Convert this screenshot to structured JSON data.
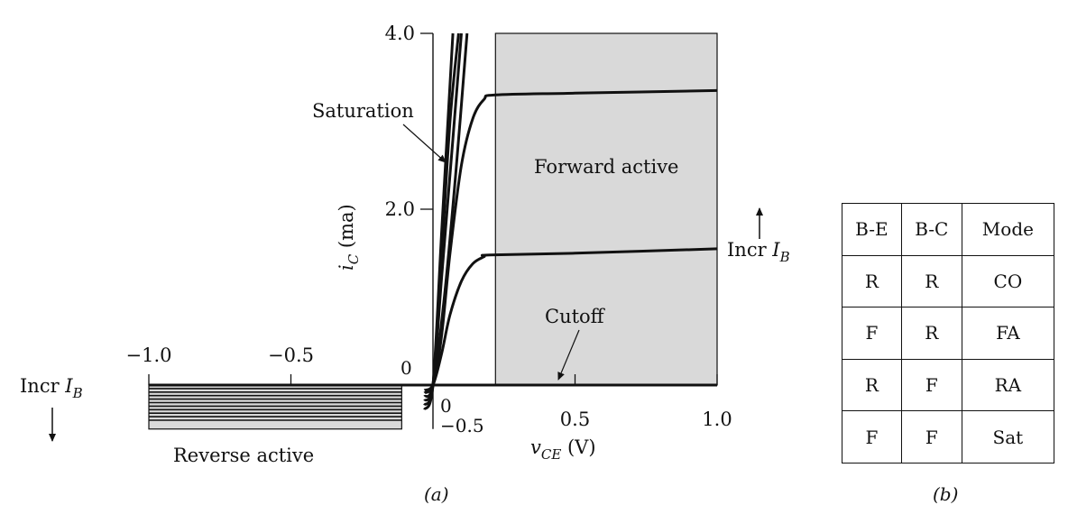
{
  "chart_data": {
    "type": "line",
    "title": "",
    "xlabel": "v",
    "xlabel_sub": "CE",
    "xlabel_unit": " (V)",
    "ylabel": "i",
    "ylabel_sub": "C",
    "ylabel_unit": " (ma)",
    "xlim": [
      -1.0,
      1.0
    ],
    "ylim": [
      -0.5,
      4.0
    ],
    "x_ticks": [
      {
        "v": -1.0,
        "label": "−1.0"
      },
      {
        "v": -0.5,
        "label": "−0.5"
      },
      {
        "v": 0.5,
        "label": "0.5"
      },
      {
        "v": 1.0,
        "label": "1.0"
      }
    ],
    "x_zero_label": "0",
    "y_ticks": [
      {
        "v": 4.0,
        "label": "4.0"
      },
      {
        "v": 2.0,
        "label": "2.0"
      }
    ],
    "y_zero_label": "0",
    "y_neg_label": "−0.5",
    "forward_active_region": {
      "x_from": 0.22,
      "x_to": 1.0,
      "y_from": 0.0,
      "y_to": 4.0,
      "label": "Forward active"
    },
    "reverse_active_region": {
      "x_from": -1.0,
      "x_to": -0.11,
      "y_from": -0.5,
      "y_to": 0.0,
      "label": "Reverse active"
    },
    "series": [
      {
        "points": [
          [
            -1.0,
            0.0
          ],
          [
            -0.08,
            0.0
          ],
          [
            0.0,
            0.0
          ],
          [
            1.0,
            0.0
          ]
        ]
      },
      {
        "points": [
          [
            -0.03,
            -0.06
          ],
          [
            0.0,
            0.0
          ],
          [
            0.03,
            0.35
          ],
          [
            0.06,
            0.8
          ],
          [
            0.1,
            1.18
          ],
          [
            0.14,
            1.38
          ],
          [
            0.18,
            1.46
          ],
          [
            0.2,
            1.48
          ],
          [
            0.5,
            1.5
          ],
          [
            1.0,
            1.55
          ]
        ]
      },
      {
        "points": [
          [
            -0.03,
            -0.09
          ],
          [
            0.0,
            0.0
          ],
          [
            0.03,
            0.55
          ],
          [
            0.06,
            1.5
          ],
          [
            0.1,
            2.5
          ],
          [
            0.14,
            3.03
          ],
          [
            0.18,
            3.25
          ],
          [
            0.22,
            3.3
          ],
          [
            0.5,
            3.32
          ],
          [
            1.0,
            3.35
          ]
        ]
      },
      {
        "points": [
          [
            -0.03,
            -0.13
          ],
          [
            0.0,
            0.0
          ],
          [
            0.04,
            1.0
          ],
          [
            0.08,
            2.4
          ],
          [
            0.12,
            4.0
          ]
        ]
      },
      {
        "points": [
          [
            -0.03,
            -0.18
          ],
          [
            0.0,
            0.0
          ],
          [
            0.03,
            1.2
          ],
          [
            0.07,
            2.8
          ],
          [
            0.1,
            4.0
          ]
        ]
      },
      {
        "points": [
          [
            -0.03,
            -0.23
          ],
          [
            0.0,
            0.0
          ],
          [
            0.03,
            1.45
          ],
          [
            0.06,
            3.0
          ],
          [
            0.09,
            4.0
          ]
        ]
      },
      {
        "points": [
          [
            -0.03,
            -0.28
          ],
          [
            0.0,
            0.0
          ],
          [
            0.03,
            1.7
          ],
          [
            0.07,
            4.0
          ]
        ]
      }
    ],
    "reverse_lines_y": [
      -0.04,
      -0.08,
      -0.12,
      -0.16,
      -0.2,
      -0.24,
      -0.28,
      -0.32,
      -0.36,
      -0.4
    ],
    "annotations": {
      "saturation": "Saturation",
      "forward_active": "Forward active",
      "cutoff": "Cutoff",
      "reverse_active": "Reverse active",
      "incr_ib_right": "Incr ",
      "incr_ib_left": "Incr ",
      "ib_symbol": "I",
      "ib_sub": "B"
    }
  },
  "table": {
    "header": [
      "B-E",
      "B-C",
      "Mode"
    ],
    "rows": [
      [
        "R",
        "R",
        "CO"
      ],
      [
        "F",
        "R",
        "FA"
      ],
      [
        "R",
        "F",
        "RA"
      ],
      [
        "F",
        "F",
        "Sat"
      ]
    ]
  },
  "captions": {
    "a": "(a)",
    "b": "(b)"
  }
}
